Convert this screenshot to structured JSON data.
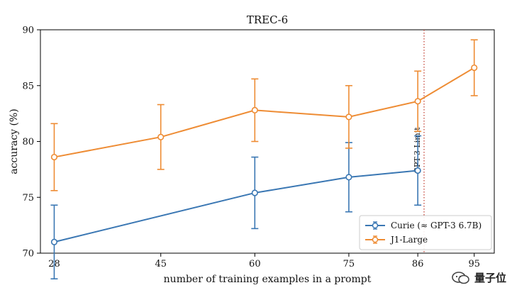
{
  "chart_data": {
    "type": "line",
    "title": "TREC-6",
    "xlabel": "number of training examples in a prompt",
    "ylabel": "accuracy (%)",
    "x": [
      28,
      45,
      60,
      75,
      86,
      95
    ],
    "x_tick_labels": [
      "28",
      "45",
      "60",
      "75",
      "86",
      "95"
    ],
    "ylim": [
      70,
      90
    ],
    "y_ticks": [
      70,
      75,
      80,
      85,
      90
    ],
    "grid": false,
    "legend_position": "lower-right",
    "series": [
      {
        "name": "Curie (≈ GPT-3 6.7B)",
        "color": "#3a77b3",
        "x": [
          28,
          60,
          75,
          86
        ],
        "y": [
          71.0,
          75.4,
          76.8,
          77.4
        ],
        "error": [
          3.3,
          3.2,
          3.1,
          3.1
        ]
      },
      {
        "name": "J1-Large",
        "color": "#ee8c34",
        "x": [
          28,
          45,
          60,
          75,
          86,
          95
        ],
        "y": [
          78.6,
          80.4,
          82.8,
          82.2,
          83.6,
          86.6
        ],
        "error": [
          3.0,
          2.9,
          2.8,
          2.8,
          2.7,
          2.5
        ]
      }
    ],
    "annotations": [
      {
        "type": "vline",
        "x": 87,
        "label": "GPT-3 Limit",
        "color": "#c0392b",
        "style": "dotted"
      }
    ]
  },
  "watermark": {
    "text": "量子位",
    "icon": "wechat-icon"
  }
}
